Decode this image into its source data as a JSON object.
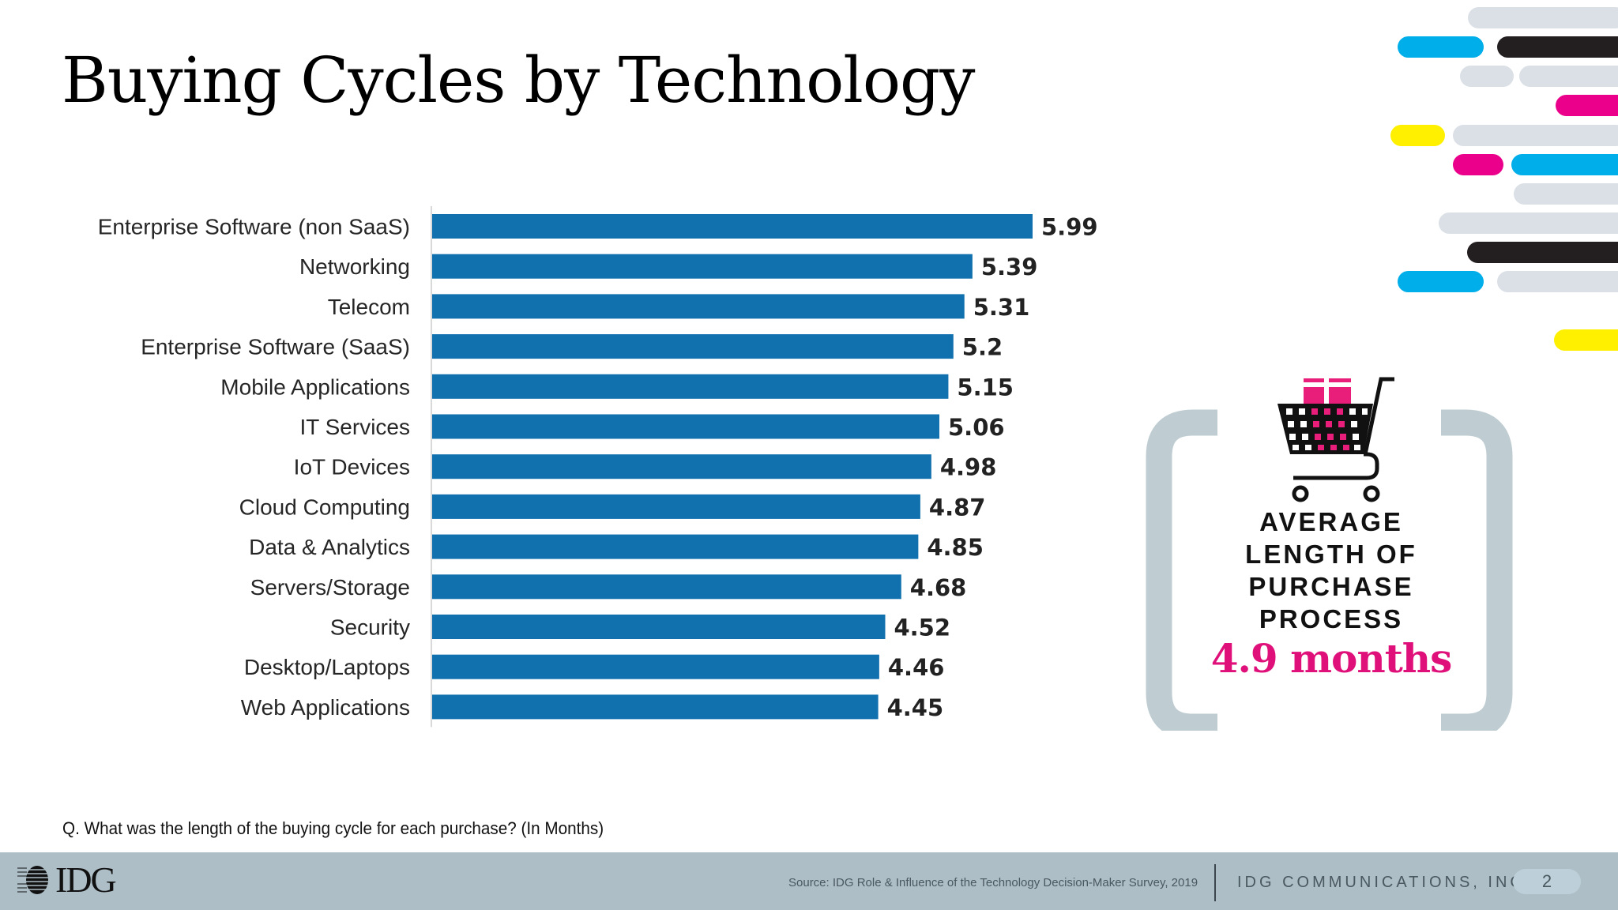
{
  "slide": {
    "title": "Buying Cycles by Technology",
    "question": "Q. What was the length of the buying cycle for each purchase? (In Months)"
  },
  "colors": {
    "bar": "#1170ae",
    "accent_pink": "#e0107a",
    "bracket_gray": "#bfcdd2",
    "footer_bg": "#adbec6",
    "deco_gray": "#dae0e6",
    "deco_cyan": "#00aee9",
    "deco_black": "#231f20",
    "deco_magenta": "#eb008b",
    "deco_yellow": "#fff000"
  },
  "chart_data": {
    "type": "bar",
    "orientation": "horizontal",
    "title": "",
    "xlabel": "",
    "ylabel": "",
    "categories": [
      "Enterprise Software (non SaaS)",
      "Networking",
      "Telecom",
      "Enterprise Software (SaaS)",
      "Mobile Applications",
      "IT Services",
      "IoT Devices",
      "Cloud Computing",
      "Data & Analytics",
      "Servers/Storage",
      "Security",
      "Desktop/Laptops",
      "Web Applications"
    ],
    "values": [
      5.99,
      5.39,
      5.31,
      5.2,
      5.15,
      5.06,
      4.98,
      4.87,
      4.85,
      4.68,
      4.52,
      4.46,
      4.45
    ],
    "value_labels": [
      "5.99",
      "5.39",
      "5.31",
      "5.2",
      "5.15",
      "5.06",
      "4.98",
      "4.87",
      "4.85",
      "4.68",
      "4.52",
      "4.46",
      "4.45"
    ],
    "xlim": [
      0,
      6
    ],
    "grid": false,
    "legend": "none",
    "units": "months"
  },
  "stat": {
    "icon": "shopping-cart-icon",
    "label_lines": [
      "AVERAGE",
      "LENGTH OF",
      "PURCHASE",
      "PROCESS"
    ],
    "value": "4.9 months"
  },
  "footer": {
    "logo_text": "IDG",
    "source": "Source: IDG Role & Influence of the Technology Decision-Maker Survey, 2019",
    "company": "IDG COMMUNICATIONS, INC.",
    "page_number": "2"
  }
}
